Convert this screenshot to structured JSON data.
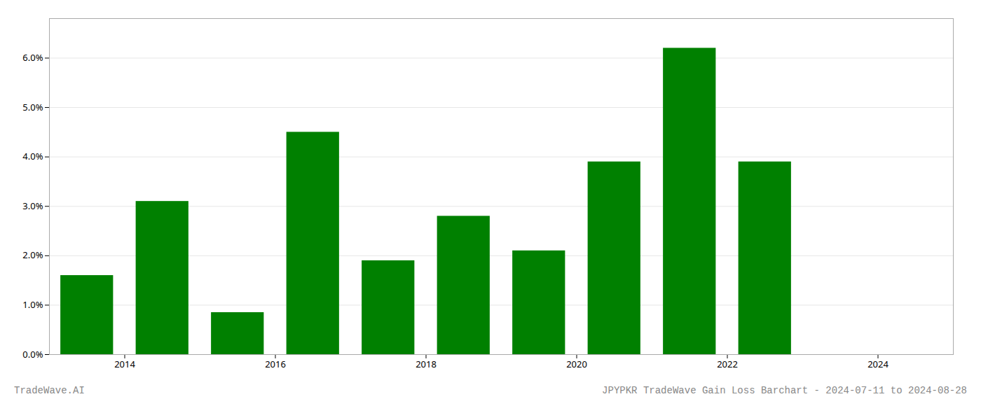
{
  "chart_data": {
    "type": "bar",
    "x": [
      2013.5,
      2014.5,
      2015.5,
      2016.5,
      2017.5,
      2018.5,
      2019.5,
      2020.5,
      2021.5,
      2022.5
    ],
    "values": [
      0.016,
      0.031,
      0.0085,
      0.045,
      0.019,
      0.028,
      0.021,
      0.039,
      0.062,
      0.039
    ],
    "color": "#008000",
    "xlim": [
      2013.0,
      2025.0
    ],
    "xticks": [
      2014,
      2016,
      2018,
      2020,
      2022,
      2024
    ],
    "ylim": [
      0,
      0.068
    ],
    "yticks": [
      {
        "value": 0.0,
        "label": "0.0%"
      },
      {
        "value": 0.01,
        "label": "1.0%"
      },
      {
        "value": 0.02,
        "label": "2.0%"
      },
      {
        "value": 0.03,
        "label": "3.0%"
      },
      {
        "value": 0.04,
        "label": "4.0%"
      },
      {
        "value": 0.05,
        "label": "5.0%"
      },
      {
        "value": 0.06,
        "label": "6.0%"
      }
    ],
    "grid": true,
    "annotations": [
      "TradeWave.AI",
      "JPYPKR TradeWave Gain Loss Barchart - 2024-07-11 to 2024-08-28"
    ]
  }
}
